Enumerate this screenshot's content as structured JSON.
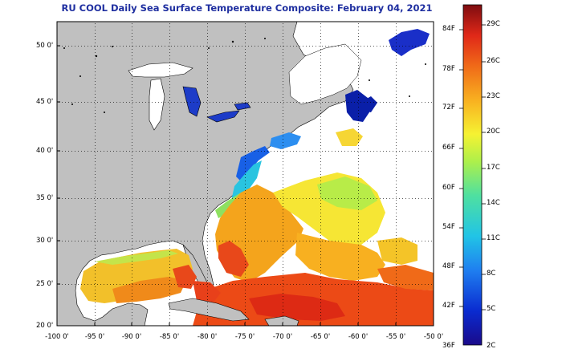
{
  "title": "RU COOL Daily Sea Surface Temperature Composite:  February 04, 2021",
  "axes": {
    "lat_ticks": [
      "50 0'",
      "45 0'",
      "40 0'",
      "35 0'",
      "30 0'",
      "25 0'",
      "20 0'"
    ],
    "lon_ticks": [
      "-100 0'",
      "-95 0'",
      "-90 0'",
      "-85 0'",
      "-80 0'",
      "-75 0'",
      "-70 0'",
      "-65 0'",
      "-60 0'",
      "-55 0'",
      "-50 0'"
    ]
  },
  "colorbar": {
    "fahrenheit": [
      "84F",
      "78F",
      "72F",
      "66F",
      "60F",
      "54F",
      "48F",
      "42F",
      "36F"
    ],
    "celsius": [
      "29C",
      "26C",
      "23C",
      "20C",
      "17C",
      "14C",
      "11C",
      "8C",
      "5C",
      "2C"
    ]
  },
  "colors": {
    "land": "#c0c0c0",
    "no_data": "#ffffff",
    "title": "#1f2fa0",
    "warm": "#e8321a",
    "cold": "#0a1fa8"
  }
}
